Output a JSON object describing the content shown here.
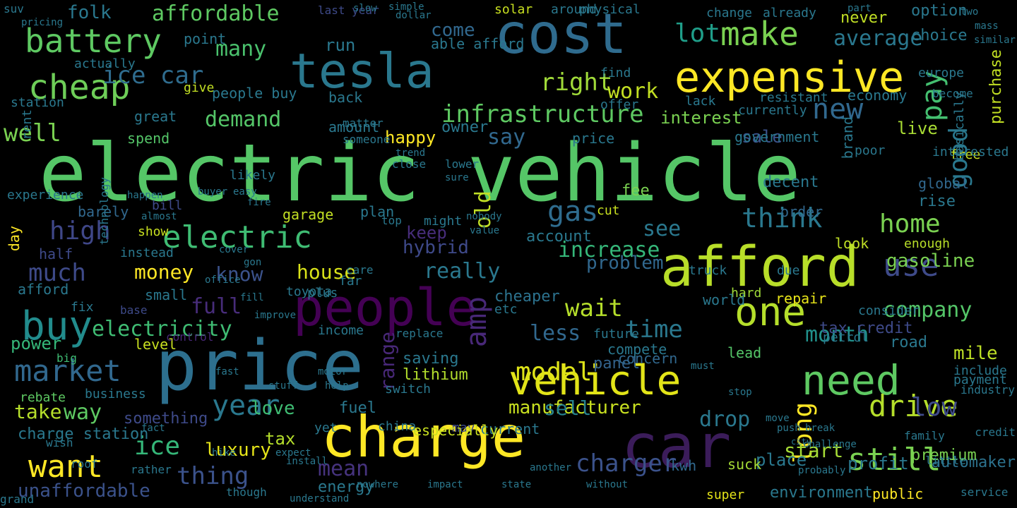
{
  "wordcloud": {
    "words": [
      {
        "text": "electric vehicle",
        "color": "#55c667"
      },
      {
        "text": "price",
        "color": "#2d6f8e"
      },
      {
        "text": "car",
        "color": "#3b1c5a"
      },
      {
        "text": "charge",
        "color": "#fde725"
      },
      {
        "text": "cost",
        "color": "#2f6b8e"
      },
      {
        "text": "tesla",
        "color": "#2a788e"
      },
      {
        "text": "afford",
        "color": "#b8de29"
      },
      {
        "text": "people",
        "color": "#440154"
      },
      {
        "text": "expensive",
        "color": "#fde725"
      },
      {
        "text": "vehicle",
        "color": "#e2e418"
      },
      {
        "text": "need",
        "color": "#5ec962"
      },
      {
        "text": "one",
        "color": "#b5de2b"
      },
      {
        "text": "buy",
        "color": "#228c8d"
      },
      {
        "text": "make",
        "color": "#7ad151"
      },
      {
        "text": "cheap",
        "color": "#6ece58"
      },
      {
        "text": "battery",
        "color": "#5ec962"
      },
      {
        "text": "year",
        "color": "#2a788e"
      },
      {
        "text": "new",
        "color": "#31688e"
      },
      {
        "text": "want",
        "color": "#fde725"
      },
      {
        "text": "pay",
        "color": "#44bf70"
      },
      {
        "text": "still",
        "color": "#7ad151"
      },
      {
        "text": "use",
        "color": "#3e4a89"
      },
      {
        "text": "market",
        "color": "#31688e"
      },
      {
        "text": "electric",
        "color": "#3fbc73"
      },
      {
        "text": "drive",
        "color": "#b5de2b"
      },
      {
        "text": "gas",
        "color": "#2f6c8e"
      },
      {
        "text": "infrastructure",
        "color": "#5ec962"
      },
      {
        "text": "good",
        "color": "#2a788e"
      },
      {
        "text": "time",
        "color": "#2a788e"
      },
      {
        "text": "think",
        "color": "#2a788e"
      },
      {
        "text": "home",
        "color": "#7ad151"
      },
      {
        "text": "high",
        "color": "#3f4788"
      },
      {
        "text": "charger",
        "color": "#3b528b"
      },
      {
        "text": "model",
        "color": "#dde318"
      },
      {
        "text": "much",
        "color": "#3e4a89"
      },
      {
        "text": "company",
        "color": "#54c568"
      },
      {
        "text": "wait",
        "color": "#b5de2b"
      },
      {
        "text": "ice car",
        "color": "#2f6c8e"
      },
      {
        "text": "range",
        "color": "#482878"
      },
      {
        "text": "affordable",
        "color": "#5ec962"
      },
      {
        "text": "demand",
        "color": "#54c568"
      },
      {
        "text": "money",
        "color": "#fde725"
      },
      {
        "text": "average",
        "color": "#2a788e"
      },
      {
        "text": "manufacturer",
        "color": "#c8e020"
      },
      {
        "text": "ice",
        "color": "#35b779"
      },
      {
        "text": "unaffordable",
        "color": "#3b528b"
      },
      {
        "text": "thing",
        "color": "#3b528b"
      },
      {
        "text": "mean",
        "color": "#46337e"
      },
      {
        "text": "amp",
        "color": "#482878"
      },
      {
        "text": "sell",
        "color": "#26828e"
      },
      {
        "text": "low",
        "color": "#3e4a89"
      },
      {
        "text": "long",
        "color": "#fde725"
      },
      {
        "text": "electricity",
        "color": "#3fbc73"
      },
      {
        "text": "really",
        "color": "#2a788e"
      },
      {
        "text": "increase",
        "color": "#35b779"
      },
      {
        "text": "less",
        "color": "#31688e"
      },
      {
        "text": "month",
        "color": "#21918c"
      },
      {
        "text": "lot",
        "color": "#1f9e89"
      },
      {
        "text": "well",
        "color": "#7ad151"
      },
      {
        "text": "right",
        "color": "#a0da39"
      },
      {
        "text": "work",
        "color": "#c2df23"
      },
      {
        "text": "say",
        "color": "#31688e"
      },
      {
        "text": "full",
        "color": "#472c7a"
      },
      {
        "text": "know",
        "color": "#3b528b"
      },
      {
        "text": "house",
        "color": "#d8e219"
      },
      {
        "text": "hybrid",
        "color": "#3e4989"
      },
      {
        "text": "gasoline",
        "color": "#7ad151"
      },
      {
        "text": "mile",
        "color": "#bddf26"
      },
      {
        "text": "many",
        "color": "#4ac16d"
      },
      {
        "text": "come",
        "color": "#31688e"
      },
      {
        "text": "keep",
        "color": "#472d7b"
      },
      {
        "text": "see",
        "color": "#2a788e"
      },
      {
        "text": "drop",
        "color": "#2a788e"
      },
      {
        "text": "start",
        "color": "#a5db36"
      },
      {
        "text": "problem",
        "color": "#31688e"
      },
      {
        "text": "fuel",
        "color": "#2a788e"
      },
      {
        "text": "love",
        "color": "#3fbc73"
      },
      {
        "text": "way",
        "color": "#5ec962"
      },
      {
        "text": "take",
        "color": "#b5de2b"
      },
      {
        "text": "panel",
        "color": "#33638d"
      },
      {
        "text": "tax credit",
        "color": "#3e4a89"
      },
      {
        "text": "interest",
        "color": "#7ad151"
      },
      {
        "text": "option",
        "color": "#2a788e"
      },
      {
        "text": "never",
        "color": "#c0df25"
      },
      {
        "text": "lithium",
        "color": "#b2dd2d"
      },
      {
        "text": "old",
        "color": "#c0df25"
      },
      {
        "text": "live",
        "color": "#a8db34"
      },
      {
        "text": "sale",
        "color": "#3b528b"
      },
      {
        "text": "power",
        "color": "#35b779"
      },
      {
        "text": "saving",
        "color": "#2a788e"
      },
      {
        "text": "cheaper",
        "color": "#2c728e"
      },
      {
        "text": "luxury",
        "color": "#e5e419"
      },
      {
        "text": "tax",
        "color": "#b5de2b"
      },
      {
        "text": "fee",
        "color": "#7ad151"
      },
      {
        "text": "road",
        "color": "#2a788e"
      },
      {
        "text": "place",
        "color": "#2a788e"
      },
      {
        "text": "automaker",
        "color": "#2c728e"
      },
      {
        "text": "kwh",
        "color": "#31688e"
      },
      {
        "text": "energy",
        "color": "#2a788e"
      },
      {
        "text": "charge station",
        "color": "#2a788e"
      },
      {
        "text": "something",
        "color": "#3e4a89"
      },
      {
        "text": "purchase",
        "color": "#c2df23"
      },
      {
        "text": "include",
        "color": "#2a788e"
      },
      {
        "text": "rebate",
        "color": "#5ec962"
      },
      {
        "text": "business",
        "color": "#2a788e"
      },
      {
        "text": "amount",
        "color": "#2a788e"
      },
      {
        "text": "spend",
        "color": "#54c568"
      },
      {
        "text": "government",
        "color": "#2a788e"
      },
      {
        "text": "economy",
        "color": "#2a788e"
      },
      {
        "text": "profit",
        "color": "#2a788e"
      },
      {
        "text": "environment",
        "color": "#2a788e"
      },
      {
        "text": "suck",
        "color": "#a5db36"
      },
      {
        "text": "super",
        "color": "#e5e419"
      },
      {
        "text": "public",
        "color": "#fde725"
      },
      {
        "text": "premium",
        "color": "#7ad151"
      },
      {
        "text": "concern",
        "color": "#31688e"
      },
      {
        "text": "hard",
        "color": "#a0da39"
      },
      {
        "text": "repair",
        "color": "#e7e419"
      },
      {
        "text": "consider",
        "color": "#2a788e"
      },
      {
        "text": "enough",
        "color": "#b8de29"
      },
      {
        "text": "payment",
        "color": "#2a788e"
      },
      {
        "text": "industry",
        "color": "#2a788e"
      },
      {
        "text": "decent",
        "color": "#2a788e"
      },
      {
        "text": "global",
        "color": "#31688e"
      },
      {
        "text": "rise",
        "color": "#2a788e"
      },
      {
        "text": "free",
        "color": "#c8e020"
      },
      {
        "text": "look",
        "color": "#c0df25"
      },
      {
        "text": "due",
        "color": "#2a788e"
      },
      {
        "text": "truck",
        "color": "#2a788e"
      },
      {
        "text": "order",
        "color": "#31688e"
      },
      {
        "text": "lead",
        "color": "#54c568"
      },
      {
        "text": "petrol",
        "color": "#2a788e"
      },
      {
        "text": "compete",
        "color": "#2a788e"
      },
      {
        "text": "future",
        "color": "#2a788e"
      },
      {
        "text": "world",
        "color": "#2a788e"
      },
      {
        "text": "barely",
        "color": "#31688e"
      },
      {
        "text": "day",
        "color": "#fde725"
      },
      {
        "text": "half",
        "color": "#3e4a89"
      },
      {
        "text": "afford",
        "color": "#2a788e"
      },
      {
        "text": "small",
        "color": "#2a788e"
      },
      {
        "text": "base",
        "color": "#3e4a89"
      },
      {
        "text": "fix",
        "color": "#2a788e"
      },
      {
        "text": "level",
        "color": "#c8e020"
      },
      {
        "text": "control",
        "color": "#482878"
      },
      {
        "text": "big",
        "color": "#3fbc73"
      },
      {
        "text": "experience",
        "color": "#2a788e"
      },
      {
        "text": "instead",
        "color": "#2a788e"
      },
      {
        "text": "bill",
        "color": "#3e4a89"
      },
      {
        "text": "show",
        "color": "#c8e020"
      },
      {
        "text": "likely",
        "color": "#2a788e"
      },
      {
        "text": "garage",
        "color": "#c2df23"
      },
      {
        "text": "plan",
        "color": "#2a788e"
      },
      {
        "text": "top",
        "color": "#2a788e"
      },
      {
        "text": "might",
        "color": "#2a788e"
      },
      {
        "text": "far",
        "color": "#2a788e"
      },
      {
        "text": "care",
        "color": "#2a788e"
      },
      {
        "text": "plus",
        "color": "#2a788e"
      },
      {
        "text": "toyota",
        "color": "#2a788e"
      },
      {
        "text": "income",
        "color": "#2a788e"
      },
      {
        "text": "replace",
        "color": "#2a788e"
      },
      {
        "text": "etc",
        "color": "#2a788e"
      },
      {
        "text": "may",
        "color": "#3e4a89"
      },
      {
        "text": "current",
        "color": "#2a788e"
      },
      {
        "text": "china",
        "color": "#2a788e"
      },
      {
        "text": "especially",
        "color": "#c8e020"
      },
      {
        "text": "switch",
        "color": "#2a788e"
      },
      {
        "text": "yet",
        "color": "#2a788e"
      },
      {
        "text": "account",
        "color": "#2a788e"
      },
      {
        "text": "cut",
        "color": "#c8e020"
      },
      {
        "text": "price",
        "color": "#2a788e"
      },
      {
        "text": "happy",
        "color": "#fde725"
      },
      {
        "text": "owner",
        "color": "#2a788e"
      },
      {
        "text": "back",
        "color": "#2a788e"
      },
      {
        "text": "great",
        "color": "#2a788e"
      },
      {
        "text": "people buy",
        "color": "#2a788e"
      },
      {
        "text": "give",
        "color": "#c2df23"
      },
      {
        "text": "station",
        "color": "#2a788e"
      },
      {
        "text": "rent",
        "color": "#2a788e"
      },
      {
        "text": "actually",
        "color": "#2a788e"
      },
      {
        "text": "folk",
        "color": "#2a788e"
      },
      {
        "text": "point",
        "color": "#2a788e"
      },
      {
        "text": "last year",
        "color": "#3e4a89"
      },
      {
        "text": "run",
        "color": "#2a788e"
      },
      {
        "text": "able afford",
        "color": "#2a788e"
      },
      {
        "text": "solar",
        "color": "#c8e020"
      },
      {
        "text": "around",
        "color": "#2a788e"
      },
      {
        "text": "physical",
        "color": "#2a788e"
      },
      {
        "text": "already",
        "color": "#2a788e"
      },
      {
        "text": "change",
        "color": "#2a788e"
      },
      {
        "text": "choice",
        "color": "#2a788e"
      },
      {
        "text": "europe",
        "color": "#2a788e"
      },
      {
        "text": "become",
        "color": "#2a788e"
      },
      {
        "text": "basically",
        "color": "#2a788e"
      },
      {
        "text": "find",
        "color": "#2a788e"
      },
      {
        "text": "offer",
        "color": "#2a788e"
      },
      {
        "text": "currently",
        "color": "#2a788e"
      },
      {
        "text": "resistant",
        "color": "#2a788e"
      },
      {
        "text": "lack",
        "color": "#2a788e"
      },
      {
        "text": "brand",
        "color": "#2a788e"
      },
      {
        "text": "interested",
        "color": "#2a788e"
      },
      {
        "text": "poor",
        "color": "#2a788e"
      },
      {
        "text": "technology",
        "color": "#2a788e"
      },
      {
        "text": "someone",
        "color": "#2a788e"
      },
      {
        "text": "matter",
        "color": "#2a788e"
      },
      {
        "text": "trend",
        "color": "#2a788e"
      },
      {
        "text": "close",
        "color": "#2a788e"
      },
      {
        "text": "lower",
        "color": "#2a788e"
      },
      {
        "text": "sure",
        "color": "#2a788e"
      },
      {
        "text": "easy",
        "color": "#2a788e"
      },
      {
        "text": "fire",
        "color": "#2a788e"
      },
      {
        "text": "nobody",
        "color": "#2a788e"
      },
      {
        "text": "value",
        "color": "#2a788e"
      },
      {
        "text": "cover",
        "color": "#2a788e"
      },
      {
        "text": "gon",
        "color": "#2a788e"
      },
      {
        "text": "office",
        "color": "#2a788e"
      },
      {
        "text": "fill",
        "color": "#2a788e"
      },
      {
        "text": "improve",
        "color": "#2a788e"
      },
      {
        "text": "fast",
        "color": "#2a788e"
      },
      {
        "text": "motor",
        "color": "#2a788e"
      },
      {
        "text": "stuff",
        "color": "#2a788e"
      },
      {
        "text": "help",
        "color": "#2a788e"
      },
      {
        "text": "rather",
        "color": "#2a788e"
      },
      {
        "text": "roof",
        "color": "#2a788e"
      },
      {
        "text": "hike",
        "color": "#2a788e"
      },
      {
        "text": "expect",
        "color": "#2a788e"
      },
      {
        "text": "though",
        "color": "#2a788e"
      },
      {
        "text": "understand",
        "color": "#2a788e"
      },
      {
        "text": "nowhere",
        "color": "#2a788e"
      },
      {
        "text": "impact",
        "color": "#2a788e"
      },
      {
        "text": "state",
        "color": "#2a788e"
      },
      {
        "text": "without",
        "color": "#2a788e"
      },
      {
        "text": "another",
        "color": "#2a788e"
      },
      {
        "text": "probably",
        "color": "#2a788e"
      },
      {
        "text": "push",
        "color": "#2a788e"
      },
      {
        "text": "break",
        "color": "#2a788e"
      },
      {
        "text": "city",
        "color": "#2a788e"
      },
      {
        "text": "family",
        "color": "#2a788e"
      },
      {
        "text": "little",
        "color": "#2a788e"
      },
      {
        "text": "credit",
        "color": "#2a788e"
      },
      {
        "text": "service",
        "color": "#2a788e"
      },
      {
        "text": "grand",
        "color": "#2a788e"
      },
      {
        "text": "wish",
        "color": "#2a788e"
      },
      {
        "text": "fact",
        "color": "#2a788e"
      },
      {
        "text": "install",
        "color": "#2a788e"
      },
      {
        "text": "buyer",
        "color": "#2a788e"
      },
      {
        "text": "happen",
        "color": "#2a788e"
      },
      {
        "text": "suv",
        "color": "#2a788e"
      },
      {
        "text": "pricing",
        "color": "#2a788e"
      },
      {
        "text": "almost",
        "color": "#2a788e"
      },
      {
        "text": "slow",
        "color": "#2a788e"
      },
      {
        "text": "dollar",
        "color": "#2a788e"
      },
      {
        "text": "simple",
        "color": "#2a788e"
      },
      {
        "text": "part",
        "color": "#2a788e"
      },
      {
        "text": "two",
        "color": "#2a788e"
      },
      {
        "text": "mass",
        "color": "#2a788e"
      },
      {
        "text": "similar",
        "color": "#2a788e"
      },
      {
        "text": "must",
        "color": "#2a788e"
      },
      {
        "text": "stop",
        "color": "#2a788e"
      },
      {
        "text": "move",
        "color": "#2a788e"
      },
      {
        "text": "challenge",
        "color": "#2a788e"
      }
    ]
  }
}
